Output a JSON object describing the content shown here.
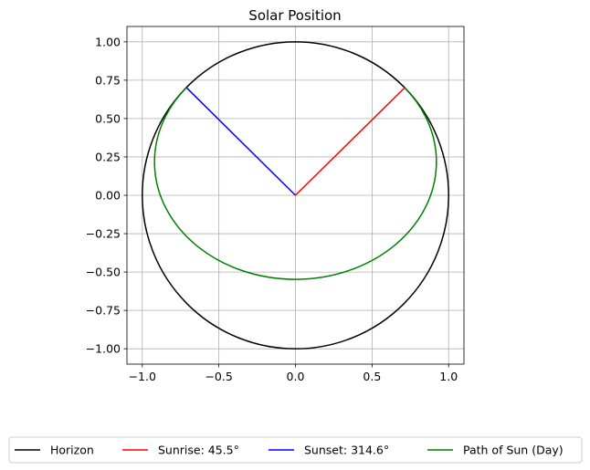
{
  "chart_data": {
    "type": "line",
    "title": "Solar Position",
    "xlabel": "",
    "ylabel": "",
    "xlim": [
      -1.1,
      1.1
    ],
    "ylim": [
      -1.1,
      1.1
    ],
    "grid": true,
    "legend_location": "bottom-center",
    "x_ticks": [
      -1.0,
      -0.5,
      0.0,
      0.5,
      1.0
    ],
    "x_tick_labels": [
      "−1.0",
      "−0.5",
      "0.0",
      "0.5",
      "1.0"
    ],
    "y_ticks": [
      1.0,
      0.75,
      0.5,
      0.25,
      0.0,
      -0.25,
      -0.5,
      -0.75,
      -1.0
    ],
    "y_tick_labels": [
      "1.00",
      "0.75",
      "0.50",
      "0.25",
      "0.00",
      "−0.25",
      "−0.50",
      "−0.75",
      "−1.00"
    ],
    "series": [
      {
        "name": "Horizon",
        "label": "Horizon",
        "color": "#000000",
        "kind": "circle",
        "center": [
          0,
          0
        ],
        "radius": 1.0
      },
      {
        "name": "Sunrise",
        "label": "Sunrise: 45.5°",
        "color": "#ff0000",
        "kind": "segment",
        "x": [
          0,
          0.713
        ],
        "y": [
          0,
          0.701
        ]
      },
      {
        "name": "Sunset",
        "label": "Sunset: 314.6°",
        "color": "#0000ff",
        "kind": "segment",
        "x": [
          0,
          -0.712
        ],
        "y": [
          0,
          0.702
        ]
      },
      {
        "name": "Path of Sun (Day)",
        "label": "Path of Sun (Day)",
        "color": "#008000",
        "kind": "ellipse-arc",
        "center": [
          0,
          0.23
        ],
        "rx": 0.92,
        "ry": 0.765,
        "from": [
          0.713,
          0.701
        ],
        "to": [
          -0.712,
          0.702
        ]
      }
    ]
  }
}
